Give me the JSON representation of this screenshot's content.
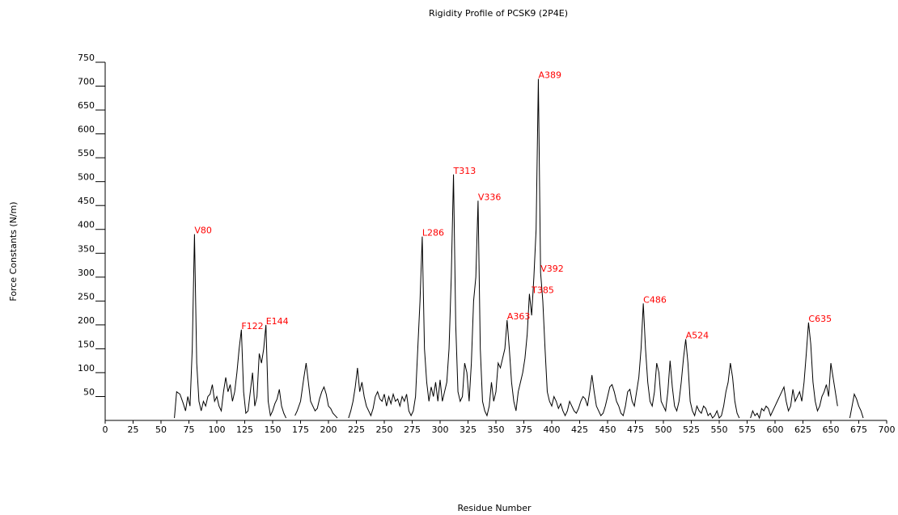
{
  "chart_data": {
    "type": "line",
    "title": "Rigidity Profile of PCSK9 (2P4E)",
    "xlabel": "Residue Number",
    "ylabel": "Force Constants (N/m)",
    "color": "#000000",
    "annotation_color": "#ff0000",
    "xlim": [
      0,
      700
    ],
    "ylim": [
      0,
      750
    ],
    "xticks": [
      0,
      25,
      50,
      75,
      100,
      125,
      150,
      175,
      200,
      225,
      250,
      275,
      300,
      325,
      350,
      375,
      400,
      425,
      450,
      475,
      500,
      525,
      550,
      575,
      600,
      625,
      650,
      675,
      700
    ],
    "yticks": [
      50,
      100,
      150,
      200,
      250,
      300,
      350,
      400,
      450,
      500,
      550,
      600,
      650,
      700,
      750
    ],
    "x": [
      62,
      64,
      67,
      70,
      72,
      74,
      76,
      78,
      80,
      82,
      84,
      86,
      88,
      90,
      92,
      94,
      96,
      98,
      100,
      102,
      104,
      106,
      108,
      110,
      112,
      114,
      116,
      118,
      120,
      122,
      124,
      126,
      128,
      130,
      132,
      134,
      136,
      138,
      140,
      142,
      144,
      146,
      148,
      150,
      152,
      154,
      156,
      158,
      160,
      162,
      165,
      170,
      172,
      175,
      178,
      180,
      182,
      184,
      186,
      188,
      190,
      192,
      194,
      196,
      198,
      200,
      202,
      204,
      206,
      208,
      213,
      218,
      220,
      222,
      224,
      226,
      228,
      230,
      232,
      234,
      236,
      238,
      240,
      242,
      244,
      246,
      248,
      250,
      252,
      254,
      256,
      258,
      260,
      262,
      264,
      266,
      268,
      270,
      272,
      274,
      276,
      278,
      280,
      282,
      284,
      286,
      288,
      290,
      292,
      294,
      296,
      298,
      300,
      302,
      304,
      306,
      308,
      310,
      312,
      314,
      316,
      318,
      320,
      322,
      324,
      326,
      328,
      330,
      332,
      334,
      336,
      338,
      340,
      342,
      344,
      346,
      348,
      350,
      352,
      354,
      356,
      358,
      360,
      362,
      364,
      366,
      368,
      370,
      372,
      374,
      376,
      378,
      380,
      382,
      384,
      386,
      388,
      390,
      392,
      394,
      396,
      398,
      400,
      402,
      404,
      406,
      408,
      410,
      412,
      414,
      416,
      418,
      420,
      422,
      424,
      426,
      428,
      430,
      432,
      434,
      436,
      438,
      440,
      442,
      444,
      446,
      448,
      450,
      452,
      454,
      456,
      458,
      460,
      462,
      464,
      466,
      468,
      470,
      472,
      474,
      476,
      478,
      480,
      482,
      484,
      486,
      488,
      490,
      492,
      494,
      496,
      498,
      500,
      502,
      504,
      506,
      508,
      510,
      512,
      514,
      516,
      518,
      520,
      522,
      524,
      526,
      528,
      530,
      532,
      534,
      536,
      538,
      540,
      542,
      544,
      546,
      548,
      550,
      552,
      554,
      556,
      558,
      560,
      562,
      564,
      566,
      568,
      572,
      578,
      580,
      582,
      584,
      586,
      588,
      590,
      592,
      594,
      596,
      598,
      600,
      602,
      604,
      606,
      608,
      610,
      612,
      614,
      616,
      618,
      620,
      622,
      624,
      626,
      628,
      630,
      632,
      634,
      636,
      638,
      640,
      642,
      644,
      646,
      648,
      650,
      652,
      654,
      656,
      661,
      667,
      669,
      671,
      673,
      675,
      677,
      679
    ],
    "values": [
      5,
      60,
      55,
      35,
      20,
      50,
      30,
      150,
      390,
      120,
      40,
      20,
      40,
      30,
      50,
      55,
      75,
      40,
      50,
      30,
      20,
      60,
      90,
      60,
      75,
      40,
      60,
      100,
      150,
      190,
      60,
      15,
      20,
      60,
      100,
      30,
      50,
      140,
      120,
      150,
      200,
      40,
      10,
      20,
      35,
      45,
      65,
      30,
      15,
      5,
      null,
      10,
      20,
      40,
      90,
      120,
      80,
      40,
      30,
      20,
      25,
      45,
      60,
      70,
      55,
      30,
      25,
      15,
      10,
      5,
      null,
      5,
      20,
      40,
      70,
      110,
      60,
      80,
      50,
      30,
      20,
      10,
      25,
      50,
      60,
      45,
      40,
      55,
      30,
      50,
      35,
      55,
      40,
      45,
      30,
      50,
      40,
      55,
      20,
      10,
      20,
      50,
      150,
      250,
      385,
      150,
      80,
      40,
      70,
      50,
      80,
      40,
      85,
      40,
      60,
      80,
      150,
      300,
      515,
      200,
      60,
      40,
      50,
      120,
      100,
      40,
      120,
      250,
      300,
      460,
      150,
      40,
      20,
      10,
      30,
      80,
      40,
      60,
      120,
      110,
      130,
      150,
      210,
      150,
      80,
      40,
      20,
      60,
      80,
      100,
      130,
      180,
      265,
      220,
      300,
      400,
      715,
      310,
      250,
      150,
      60,
      40,
      30,
      50,
      40,
      25,
      35,
      20,
      10,
      20,
      40,
      30,
      20,
      15,
      25,
      40,
      50,
      45,
      30,
      60,
      95,
      60,
      30,
      20,
      10,
      15,
      30,
      50,
      70,
      75,
      60,
      40,
      30,
      15,
      10,
      30,
      60,
      65,
      40,
      30,
      60,
      90,
      150,
      245,
      150,
      80,
      40,
      30,
      60,
      120,
      100,
      40,
      30,
      20,
      60,
      125,
      70,
      30,
      20,
      40,
      80,
      130,
      170,
      120,
      40,
      20,
      10,
      30,
      20,
      15,
      30,
      25,
      10,
      15,
      5,
      10,
      20,
      5,
      10,
      30,
      60,
      80,
      120,
      90,
      40,
      15,
      5,
      null,
      5,
      20,
      10,
      15,
      5,
      25,
      20,
      30,
      25,
      10,
      20,
      30,
      40,
      50,
      60,
      70,
      40,
      20,
      30,
      65,
      40,
      50,
      60,
      40,
      80,
      140,
      205,
      160,
      80,
      40,
      20,
      30,
      50,
      60,
      75,
      50,
      120,
      90,
      60,
      30,
      null,
      5,
      30,
      55,
      45,
      30,
      20,
      5
    ],
    "annotations": [
      {
        "text": "V80",
        "x": 80,
        "y": 390
      },
      {
        "text": "F122",
        "x": 122,
        "y": 190
      },
      {
        "text": "E144",
        "x": 144,
        "y": 200
      },
      {
        "text": "L286",
        "x": 284,
        "y": 385
      },
      {
        "text": "T313",
        "x": 312,
        "y": 515
      },
      {
        "text": "V336",
        "x": 334,
        "y": 460
      },
      {
        "text": "A363",
        "x": 360,
        "y": 210
      },
      {
        "text": "T385",
        "x": 382,
        "y": 265
      },
      {
        "text": "A389",
        "x": 388,
        "y": 715
      },
      {
        "text": "V392",
        "x": 390,
        "y": 310
      },
      {
        "text": "C486",
        "x": 482,
        "y": 245
      },
      {
        "text": "A524",
        "x": 520,
        "y": 170
      },
      {
        "text": "C635",
        "x": 630,
        "y": 205
      }
    ]
  }
}
